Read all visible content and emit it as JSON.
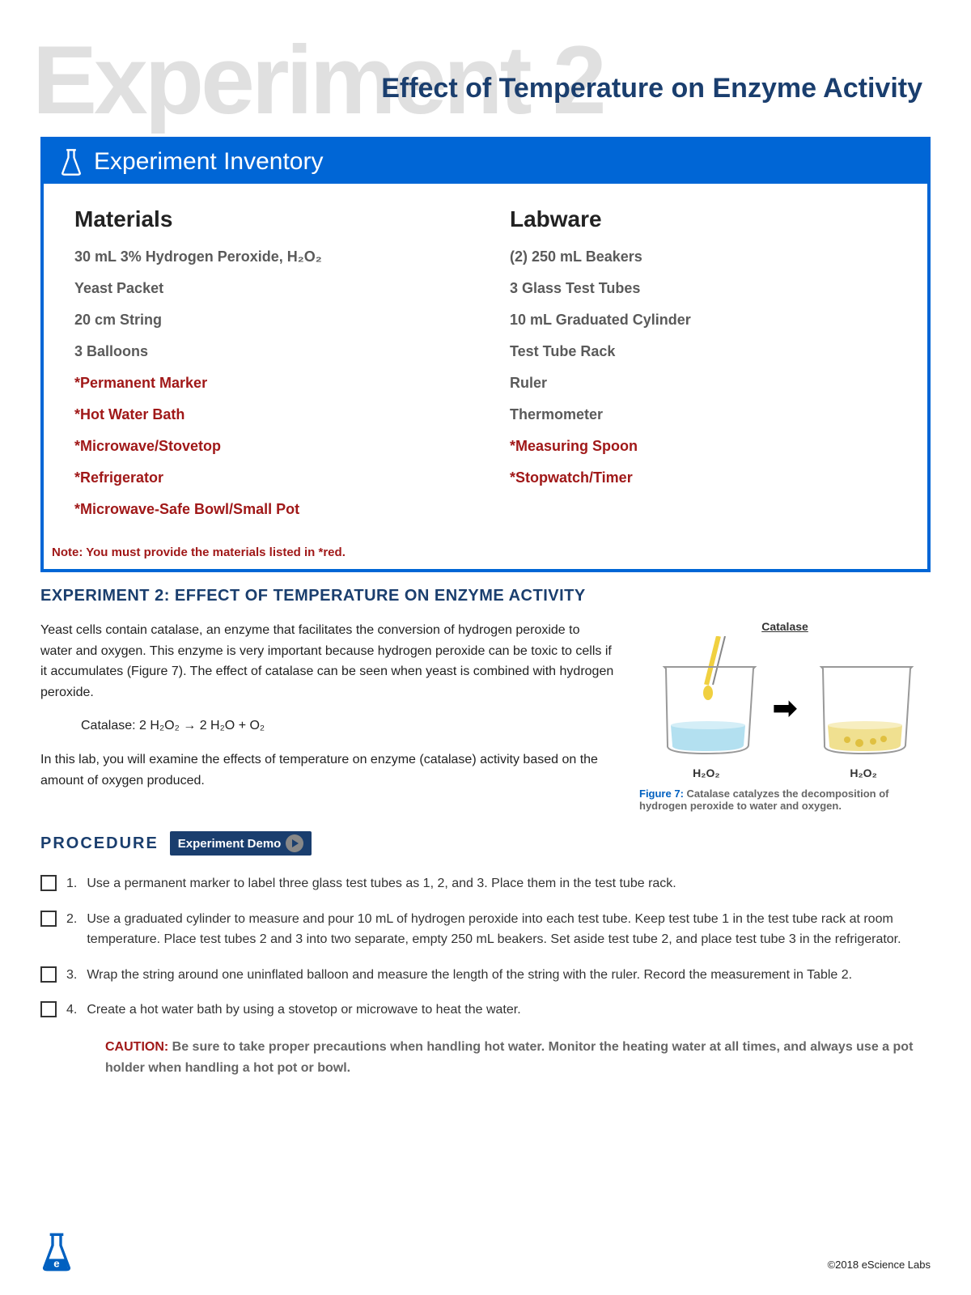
{
  "bg_title": "Experiment 2",
  "page_title": "Effect of Temperature on Enzyme Activity",
  "inventory": {
    "header": "Experiment Inventory",
    "materials_heading": "Materials",
    "labware_heading": "Labware",
    "materials": [
      {
        "text": "30 mL 3% Hydrogen Peroxide, H₂O₂",
        "red": false
      },
      {
        "text": "Yeast Packet",
        "red": false
      },
      {
        "text": "20 cm String",
        "red": false
      },
      {
        "text": "3 Balloons",
        "red": false
      },
      {
        "text": "*Permanent Marker",
        "red": true
      },
      {
        "text": "*Hot Water Bath",
        "red": true
      },
      {
        "text": "*Microwave/Stovetop",
        "red": true
      },
      {
        "text": "*Refrigerator",
        "red": true
      },
      {
        "text": "*Microwave-Safe Bowl/Small Pot",
        "red": true
      }
    ],
    "labware": [
      {
        "text": "(2) 250 mL Beakers",
        "red": false
      },
      {
        "text": "3 Glass Test Tubes",
        "red": false
      },
      {
        "text": "10 mL Graduated Cylinder",
        "red": false
      },
      {
        "text": "Test Tube Rack",
        "red": false
      },
      {
        "text": "Ruler",
        "red": false
      },
      {
        "text": "Thermometer",
        "red": false
      },
      {
        "text": "*Measuring Spoon",
        "red": true
      },
      {
        "text": "*Stopwatch/Timer",
        "red": true
      }
    ],
    "note": "Note: You must provide the materials listed in *red."
  },
  "experiment": {
    "title": "EXPERIMENT 2: EFFECT OF TEMPERATURE ON ENZYME ACTIVITY",
    "para1": "Yeast cells contain catalase, an enzyme that facilitates the conversion of hydrogen peroxide to water and oxygen. This enzyme is very important because hydrogen peroxide can be toxic to cells if it accumulates (Figure 7). The effect of catalase can be seen when yeast is combined with hydrogen peroxide.",
    "equation": "Catalase: 2 H₂O₂ → 2 H₂O + O₂",
    "para2": "In this lab, you will examine the effects of temperature on enzyme (catalase) activity based on the amount of oxygen produced."
  },
  "figure": {
    "catalase_label": "Catalase",
    "beaker1_label": "H₂O₂",
    "beaker2_label": "H₂O₂",
    "caption_bold": "Figure 7:",
    "caption_text": " Catalase catalyzes the decomposition of hydrogen peroxide to water and oxygen.",
    "colors": {
      "liquid1": "#b3e0f0",
      "liquid2": "#f0e090",
      "dropper": "#f0d040",
      "beaker_stroke": "#999"
    }
  },
  "procedure": {
    "heading": "PROCEDURE",
    "demo_label": "Experiment Demo",
    "steps": [
      "Use a permanent marker to label three glass test tubes as 1, 2, and 3. Place them in the test tube rack.",
      "Use a graduated cylinder to measure and pour 10 mL of hydrogen peroxide into each test tube. Keep test tube 1 in the test tube rack at room temperature. Place test tubes 2 and 3 into two separate, empty 250 mL beakers. Set aside test tube 2, and place test tube 3 in the refrigerator.",
      "Wrap the string around one uninflated balloon and measure the length of the string with the ruler. Record the measurement in Table 2.",
      "Create a hot water bath by using a stovetop or microwave to heat the water."
    ],
    "caution_label": "CAUTION:  ",
    "caution_text": "Be sure to take proper precautions when handling hot water. Monitor the heating water at all times, and always use a pot holder when handling a hot pot or bowl."
  },
  "footer": {
    "copyright": "©2018 eScience Labs"
  },
  "colors": {
    "brand_blue": "#0066d6",
    "heading_navy": "#1a3e6e",
    "red_text": "#a01818",
    "grey_bg_title": "#e0e0e0",
    "item_grey": "#5a5a5a"
  }
}
